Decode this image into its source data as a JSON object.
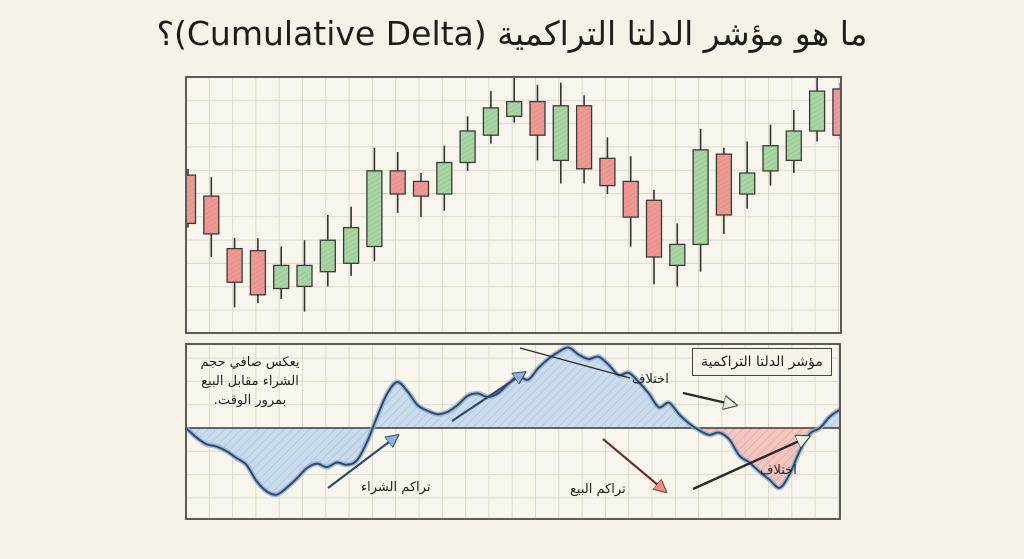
{
  "title": "ما هو مؤشر الدلتا التراكمية (Cumulative Delta)؟",
  "colors": {
    "background": "#f6f2e7",
    "grid": "#d9d6cc",
    "frame": "#4a4a4a",
    "bullish_fill": "#a8d5a2",
    "bearish_fill": "#ee9a94",
    "delta_line": "#2f4a6e",
    "delta_positive_fill": "#b9d0e8",
    "delta_negative_fill": "#f0b3ae"
  },
  "annotations": {
    "description": "يعكس صافي حجم الشراء مقابل البيع بمرور الوقت.",
    "indicator_label": "مؤشر الدلتا التراكمية",
    "buy_accumulation": "تراكم الشراء",
    "sell_accumulation": "تراكم البيع",
    "divergence_top": "اختلاف",
    "divergence_bottom": "اختلاف"
  },
  "chart_data": [
    {
      "type": "candlestick",
      "title": "Price",
      "xlabel": "",
      "ylabel": "",
      "grid": true,
      "note": "Values are relative price levels (higher = higher price), estimated from drawing; no axis ticks shown.",
      "candles": [
        {
          "open": 69,
          "close": 46,
          "high": 72,
          "low": 44,
          "dir": "bear"
        },
        {
          "open": 59,
          "close": 41,
          "high": 68,
          "low": 30,
          "dir": "bear"
        },
        {
          "open": 34,
          "close": 18,
          "high": 39,
          "low": 6,
          "dir": "bear"
        },
        {
          "open": 33,
          "close": 12,
          "high": 39,
          "low": 8,
          "dir": "bear"
        },
        {
          "open": 15,
          "close": 26,
          "high": 35,
          "low": 10,
          "dir": "bull"
        },
        {
          "open": 16,
          "close": 26,
          "high": 38,
          "low": 4,
          "dir": "bull"
        },
        {
          "open": 23,
          "close": 38,
          "high": 50,
          "low": 16,
          "dir": "bull"
        },
        {
          "open": 27,
          "close": 44,
          "high": 54,
          "low": 21,
          "dir": "bull"
        },
        {
          "open": 35,
          "close": 71,
          "high": 82,
          "low": 28,
          "dir": "bull"
        },
        {
          "open": 71,
          "close": 60,
          "high": 80,
          "low": 51,
          "dir": "bear"
        },
        {
          "open": 66,
          "close": 59,
          "high": 70,
          "low": 49,
          "dir": "bear"
        },
        {
          "open": 60,
          "close": 75,
          "high": 83,
          "low": 52,
          "dir": "bull"
        },
        {
          "open": 75,
          "close": 90,
          "high": 97,
          "low": 71,
          "dir": "bull"
        },
        {
          "open": 88,
          "close": 101,
          "high": 109,
          "low": 84,
          "dir": "bull"
        },
        {
          "open": 97,
          "close": 104,
          "high": 118,
          "low": 94,
          "dir": "bull"
        },
        {
          "open": 104,
          "close": 88,
          "high": 112,
          "low": 76,
          "dir": "bear"
        },
        {
          "open": 76,
          "close": 102,
          "high": 113,
          "low": 65,
          "dir": "bull"
        },
        {
          "open": 102,
          "close": 72,
          "high": 107,
          "low": 65,
          "dir": "bear"
        },
        {
          "open": 77,
          "close": 64,
          "high": 87,
          "low": 60,
          "dir": "bear"
        },
        {
          "open": 66,
          "close": 49,
          "high": 78,
          "low": 35,
          "dir": "bear"
        },
        {
          "open": 57,
          "close": 30,
          "high": 62,
          "low": 17,
          "dir": "bear"
        },
        {
          "open": 26,
          "close": 36,
          "high": 46,
          "low": 16,
          "dir": "bull"
        },
        {
          "open": 36,
          "close": 81,
          "high": 91,
          "low": 23,
          "dir": "bull"
        },
        {
          "open": 79,
          "close": 50,
          "high": 82,
          "low": 41,
          "dir": "bear"
        },
        {
          "open": 60,
          "close": 70,
          "high": 85,
          "low": 53,
          "dir": "bull"
        },
        {
          "open": 71,
          "close": 83,
          "high": 93,
          "low": 64,
          "dir": "bull"
        },
        {
          "open": 76,
          "close": 90,
          "high": 100,
          "low": 70,
          "dir": "bull"
        },
        {
          "open": 90,
          "close": 109,
          "high": 117,
          "low": 85,
          "dir": "bull"
        },
        {
          "open": 110,
          "close": 88,
          "high": 113,
          "low": 86,
          "dir": "bear"
        }
      ]
    },
    {
      "type": "area",
      "title": "مؤشر الدلتا التراكمية",
      "xlabel": "",
      "ylabel": "",
      "grid": true,
      "baseline": 0,
      "note": "Relative cumulative delta values, estimated from drawing; positive shaded blue, negative shaded red.",
      "x": [
        0,
        1,
        2,
        3,
        4,
        5,
        6,
        7,
        8,
        9,
        10,
        11,
        12,
        13,
        14,
        15,
        16,
        17,
        18,
        19,
        20,
        21,
        22,
        23,
        24,
        25,
        26,
        27,
        28,
        29,
        30,
        31,
        32,
        33,
        34,
        35,
        36,
        37,
        38,
        39,
        40,
        41,
        42,
        43,
        44,
        45,
        46,
        47,
        48,
        49,
        50,
        51,
        52,
        53,
        54,
        55,
        56,
        57,
        58,
        59,
        60,
        61,
        62,
        63,
        64,
        65
      ],
      "values": [
        0,
        -8,
        -14,
        -16,
        -20,
        -26,
        -32,
        -46,
        -55,
        -58,
        -52,
        -44,
        -35,
        -31,
        -34,
        -30,
        -32,
        -28,
        -12,
        10,
        30,
        40,
        32,
        20,
        15,
        12,
        14,
        20,
        28,
        30,
        27,
        30,
        38,
        45,
        42,
        52,
        60,
        66,
        70,
        64,
        60,
        62,
        55,
        46,
        48,
        40,
        30,
        18,
        22,
        12,
        4,
        -2,
        -6,
        -4,
        -10,
        -24,
        -30,
        -38,
        -45,
        -52,
        -40,
        -20,
        -5,
        0,
        10,
        16
      ]
    }
  ]
}
